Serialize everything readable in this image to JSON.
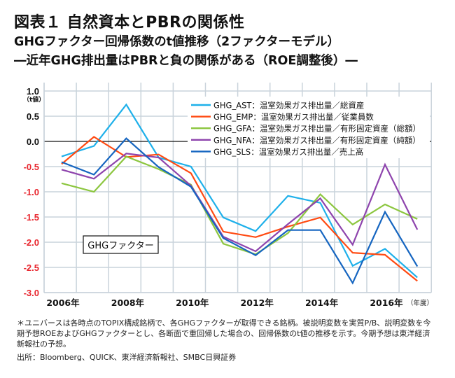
{
  "header": {
    "title": "図表１ 自然資本とPBRの関係性",
    "subtitle1": "GHGファクター回帰係数のt値推移（2ファクターモデル）",
    "subtitle2": "―近年GHG排出量はPBRと負の関係がある（ROE調整後）―"
  },
  "chart_data": {
    "type": "line",
    "ylabel": "（t値）",
    "xlabel": "（年度）",
    "annotation": "GHGファクター",
    "ylim": [
      -3.0,
      1.0
    ],
    "yticks": [
      "1.0",
      "0.5",
      "0.0",
      "-0.5",
      "-1.0",
      "-1.5",
      "-2.0",
      "-2.5",
      "-3.0"
    ],
    "ytick_values": [
      1.0,
      0.5,
      0.0,
      -0.5,
      -1.0,
      -1.5,
      -2.0,
      -2.5,
      -3.0
    ],
    "negative_tick_color": "#e8262e",
    "x": [
      2006,
      2007,
      2008,
      2009,
      2010,
      2011,
      2012,
      2013,
      2014,
      2015,
      2016,
      2017
    ],
    "xtick_labels": [
      {
        "year": 2006,
        "label": "2006年"
      },
      {
        "year": 2008,
        "label": "2008年"
      },
      {
        "year": 2010,
        "label": "2010年"
      },
      {
        "year": 2012,
        "label": "2012年"
      },
      {
        "year": 2014,
        "label": "2014年"
      },
      {
        "year": 2016,
        "label": "2016年"
      }
    ],
    "grid": true,
    "legend_position": "top-right",
    "series": [
      {
        "name": "GHG_AST：温室効果ガス排出量／総資産",
        "color": "#1eb0ea",
        "values": [
          -0.3,
          -0.09,
          0.73,
          -0.32,
          -0.5,
          -1.51,
          -1.78,
          -1.08,
          -1.22,
          -2.47,
          -2.13,
          -2.7
        ]
      },
      {
        "name": "GHG_EMP：温室効果ガス排出量／従業員数",
        "color": "#ff4a12",
        "values": [
          -0.45,
          0.09,
          -0.31,
          -0.26,
          -0.63,
          -1.79,
          -1.9,
          -1.69,
          -1.51,
          -2.21,
          -2.25,
          -2.77
        ]
      },
      {
        "name": "GHG_GFA：温室効果ガス排出量／有形固定資産（総額）",
        "color": "#8cc63f",
        "values": [
          -0.83,
          -1.0,
          -0.3,
          -0.55,
          -0.86,
          -2.03,
          -2.24,
          -1.82,
          -1.05,
          -1.65,
          -1.25,
          -1.54
        ]
      },
      {
        "name": "GHG_NFA：温室効果ガス排出量／有形固定資産（純額）",
        "color": "#8e44ad",
        "values": [
          -0.56,
          -0.74,
          -0.24,
          -0.32,
          -0.88,
          -1.89,
          -2.18,
          -1.64,
          -1.13,
          -2.05,
          -0.46,
          -1.75
        ]
      },
      {
        "name": "GHG_SLS：温室効果ガス排出量／売上高",
        "color": "#1565c0",
        "values": [
          -0.41,
          -0.66,
          0.06,
          -0.51,
          -0.9,
          -1.92,
          -2.26,
          -1.76,
          -1.76,
          -2.81,
          -1.4,
          -2.48
        ]
      }
    ]
  },
  "footer": {
    "note": "＊ユニバースは各時点のTOPIX構成銘柄で、各GHGファクターが取得できる銘柄。被説明変数を実質P/B、説明変数を今期予想ROEおよびGHGファクターとし、各断面で重回帰した場合の、回帰係数のt値の推移を示す。今期予想は東洋経済新報社の予想。",
    "source": "出所：Bloomberg、QUICK、東洋経済新報社、SMBC日興証券"
  }
}
